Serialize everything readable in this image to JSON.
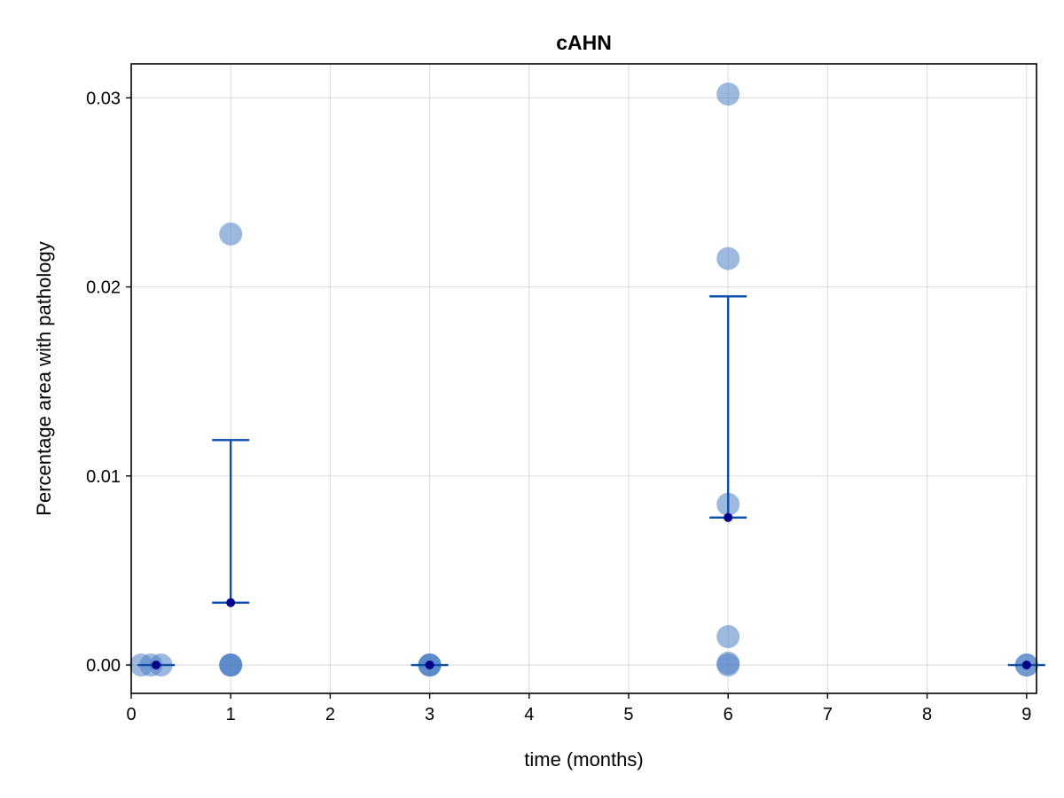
{
  "chart_data": {
    "type": "scatter",
    "title": "cAHN",
    "xlabel": "time (months)",
    "ylabel": "Percentage area with pathology",
    "xlim": [
      0,
      9.1
    ],
    "ylim": [
      -0.0015,
      0.0318
    ],
    "x_ticks": [
      0,
      1,
      2,
      3,
      4,
      5,
      6,
      7,
      8,
      9
    ],
    "y_ticks": [
      0.0,
      0.01,
      0.02,
      0.03
    ],
    "y_tick_labels": [
      "0.00",
      "0.01",
      "0.02",
      "0.03"
    ],
    "grid": true,
    "legend": "none",
    "colors": {
      "points": "#4f7fc4",
      "error_bar": "#0b4fa8",
      "mean": "#00008b"
    },
    "series": [
      {
        "kind": "points",
        "points": [
          {
            "x": 0.1,
            "y": 0.0
          },
          {
            "x": 0.2,
            "y": 0.0
          },
          {
            "x": 0.3,
            "y": 0.0
          },
          {
            "x": 1,
            "y": 0.0
          },
          {
            "x": 1,
            "y": 0.0
          },
          {
            "x": 1,
            "y": 0.0
          },
          {
            "x": 1,
            "y": 0.0228
          },
          {
            "x": 3,
            "y": 0.0
          },
          {
            "x": 3,
            "y": 0.0
          },
          {
            "x": 3,
            "y": 0.0
          },
          {
            "x": 6,
            "y": 0.0302
          },
          {
            "x": 6,
            "y": 0.0215
          },
          {
            "x": 6,
            "y": 0.0085
          },
          {
            "x": 6,
            "y": 0.0015
          },
          {
            "x": 6,
            "y": 0.0001
          },
          {
            "x": 6,
            "y": 0.0
          },
          {
            "x": 9,
            "y": 0.0
          },
          {
            "x": 9,
            "y": 0.0
          }
        ]
      },
      {
        "kind": "mean_error",
        "points": [
          {
            "x": 0.25,
            "mean": 0.0,
            "lower": 0.0,
            "upper": 0.0
          },
          {
            "x": 1,
            "mean": 0.0033,
            "lower": 0.0033,
            "upper": 0.0119
          },
          {
            "x": 3,
            "mean": 0.0,
            "lower": 0.0,
            "upper": 0.0
          },
          {
            "x": 6,
            "mean": 0.0078,
            "lower": 0.0078,
            "upper": 0.0195
          },
          {
            "x": 9,
            "mean": 0.0,
            "lower": 0.0,
            "upper": 0.0
          }
        ]
      }
    ]
  }
}
